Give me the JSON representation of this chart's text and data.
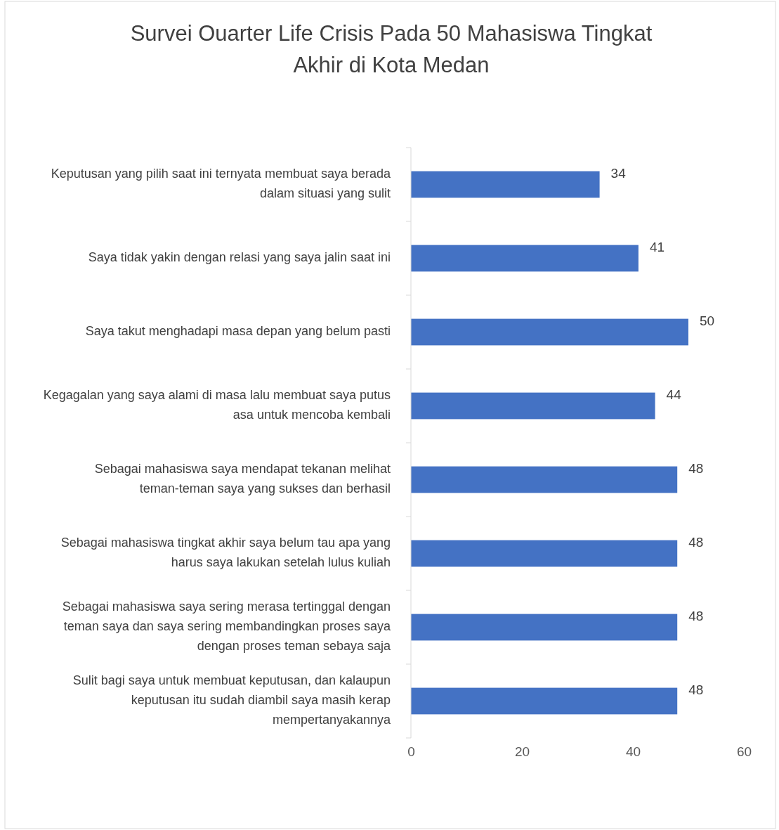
{
  "chart_data": {
    "type": "bar",
    "orientation": "horizontal",
    "title": "Survei Ouarter Life Crisis Pada 50 Mahasiswa Tingkat Akhir di Kota Medan",
    "categories": [
      "Keputusan yang pilih saat ini ternyata membuat saya berada dalam situasi yang sulit",
      "Saya tidak yakin dengan relasi yang saya jalin saat ini",
      "Saya takut menghadapi masa depan yang belum pasti",
      "Kegagalan yang saya alami di masa lalu membuat saya putus asa untuk mencoba kembali",
      "Sebagai mahasiswa saya mendapat tekanan melihat teman-teman saya yang sukses dan berhasil",
      "Sebagai mahasiswa tingkat akhir saya belum tau apa yang harus saya lakukan setelah lulus kuliah",
      "Sebagai mahasiswa saya sering merasa tertinggal dengan teman saya dan saya sering membandingkan proses saya dengan proses teman sebaya saja",
      "Sulit bagi saya untuk membuat keputusan, dan kalaupun keputusan itu sudah diambil saya masih kerap mempertanyakannya"
    ],
    "values": [
      34,
      41,
      50,
      44,
      48,
      48,
      48,
      48
    ],
    "color": "#4472c4",
    "xlim": [
      0,
      60
    ],
    "xticks": [
      0,
      20,
      40,
      60
    ],
    "data_labels": true
  }
}
